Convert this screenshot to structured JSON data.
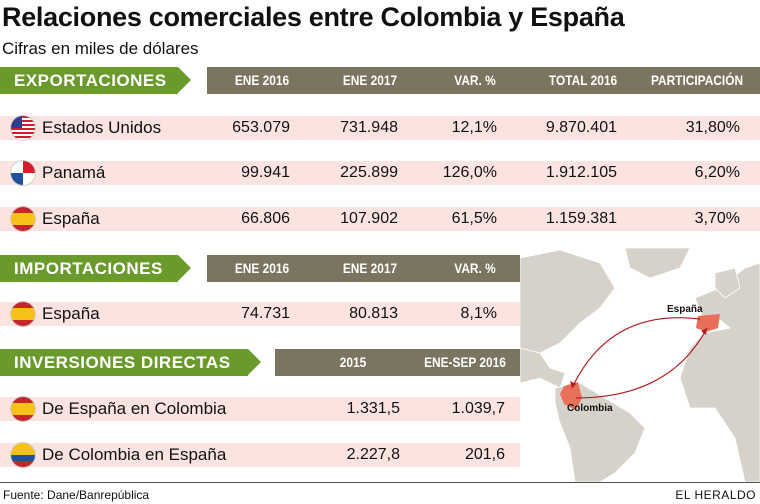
{
  "title": "Relaciones comerciales entre Colombia y España",
  "subtitle": "Cifras en miles de dólares",
  "exportaciones": {
    "label": "EXPORTACIONES",
    "columns": [
      "ENE 2016",
      "ENE 2017",
      "VAR. %",
      "TOTAL 2016",
      "PARTICIPACIÓN"
    ],
    "rows": [
      {
        "country": "Estados Unidos",
        "flag": "usa-flag-icon",
        "values": [
          "653.079",
          "731.948",
          "12,1%",
          "9.870.401",
          "31,80%"
        ]
      },
      {
        "country": "Panamá",
        "flag": "panama-flag-icon",
        "values": [
          "99.941",
          "225.899",
          "126,0%",
          "1.912.105",
          "6,20%"
        ]
      },
      {
        "country": "España",
        "flag": "spain-flag-icon",
        "values": [
          "66.806",
          "107.902",
          "61,5%",
          "1.159.381",
          "3,70%"
        ]
      }
    ]
  },
  "importaciones": {
    "label": "IMPORTACIONES",
    "columns": [
      "ENE 2016",
      "ENE 2017",
      "VAR. %"
    ],
    "rows": [
      {
        "country": "España",
        "flag": "spain-flag-icon",
        "values": [
          "74.731",
          "80.813",
          "8,1%"
        ]
      }
    ]
  },
  "inversiones": {
    "label": "INVERSIONES DIRECTAS",
    "columns": [
      "2015",
      "ENE-SEP 2016"
    ],
    "rows": [
      {
        "country": "De España en Colombia",
        "flag": "spain-flag-icon",
        "values": [
          "1.331,5",
          "1.039,7"
        ]
      },
      {
        "country": "De Colombia en España",
        "flag": "colombia-flag-icon",
        "values": [
          "2.227,8",
          "201,6"
        ]
      }
    ]
  },
  "map": {
    "label_spain": "España",
    "label_colombia": "Colombia"
  },
  "footer": {
    "source": "Fuente: Dane/Banrepública",
    "brand": "EL HERALDO"
  },
  "colors": {
    "green": "#6b9a2c",
    "header": "#7b7460",
    "row": "#fbe4e0",
    "highlight": "#e8705a",
    "arrow": "#b01c22"
  },
  "chart_data": {
    "type": "table",
    "title": "Relaciones comerciales entre Colombia y España",
    "subtitle": "Cifras en miles de dólares"
  }
}
